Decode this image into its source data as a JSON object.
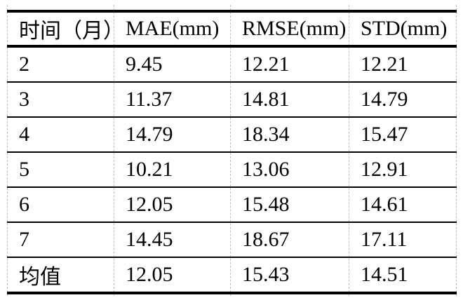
{
  "table": {
    "name": "error-metrics-by-month",
    "columns": [
      "时间（月）",
      "MAE(mm)",
      "RMSE(mm)",
      "STD(mm)"
    ],
    "rows": [
      [
        "2",
        "9.45",
        "12.21",
        "12.21"
      ],
      [
        "3",
        "11.37",
        "14.81",
        "14.79"
      ],
      [
        "4",
        "14.79",
        "18.34",
        "15.47"
      ],
      [
        "5",
        "10.21",
        "13.06",
        "12.91"
      ],
      [
        "6",
        "12.05",
        "15.48",
        "14.61"
      ],
      [
        "7",
        "14.45",
        "18.67",
        "17.11"
      ],
      [
        "均值",
        "12.05",
        "15.43",
        "14.51"
      ]
    ]
  },
  "colors": {
    "background": "#ffffff",
    "text": "#000000",
    "rule": "#000000",
    "gridline_dashed": "#bdbdbd"
  }
}
